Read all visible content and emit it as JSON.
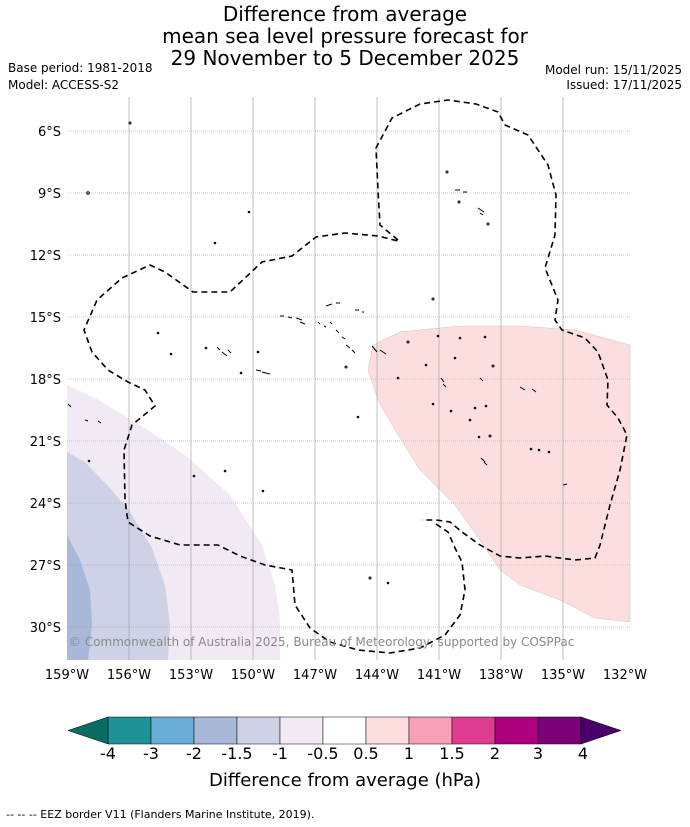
{
  "title_lines": [
    "Difference from average",
    "mean sea level pressure forecast for",
    "29 November to 5 December 2025"
  ],
  "base_period": "Base period: 1981-2018",
  "model": "Model: ACCESS-S2",
  "model_run": "Model run: 15/11/2025",
  "issued": "Issued: 17/11/2025",
  "lat_labels": [
    "6°S",
    "9°S",
    "12°S",
    "15°S",
    "18°S",
    "21°S",
    "24°S",
    "27°S",
    "30°S"
  ],
  "lon_labels": [
    "159°W",
    "156°W",
    "153°W",
    "150°W",
    "147°W",
    "144°W",
    "141°W",
    "138°W",
    "135°W",
    "132°W"
  ],
  "copyright": "© Commonwealth of Australia 2025, Bureau of Meteorology, supported by COSPPac",
  "colorbar": {
    "ticks": [
      "-4",
      "-3",
      "-2",
      "-1.5",
      "-1",
      "-0.5",
      "0.5",
      "1",
      "1.5",
      "2",
      "3",
      "4"
    ],
    "colors": [
      "#1e9296",
      "#6aadd5",
      "#a7b8d9",
      "#cfd2e6",
      "#f1e9f3",
      "#ffffff",
      "#fddede",
      "#f7a1b7",
      "#df3d92",
      "#ae017e",
      "#7a0177"
    ],
    "under_color": "#0a6b62",
    "over_color": "#49006a",
    "title": "Difference from average (hPa)"
  },
  "footnote": "--  --  -- EEZ border V11 (Flanders Marine Institute, 2019)."
}
